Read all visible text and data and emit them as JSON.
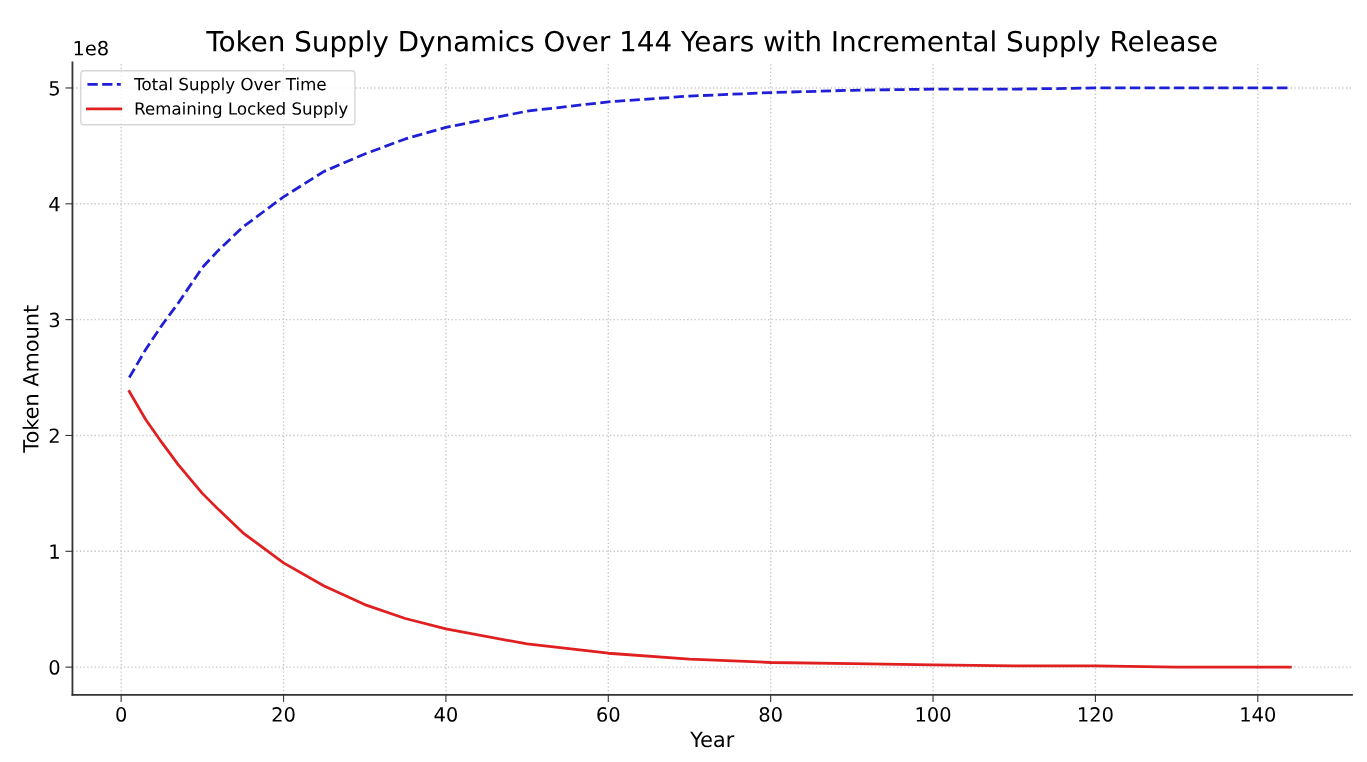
{
  "chart_data": {
    "type": "line",
    "title": "Token Supply Dynamics Over 144 Years with Incremental Supply Release",
    "xlabel": "Year",
    "ylabel": "Token Amount",
    "annotations": [
      "1e8"
    ],
    "x": [
      1,
      3,
      5,
      7,
      10,
      12,
      15,
      20,
      25,
      30,
      35,
      40,
      50,
      60,
      70,
      80,
      90,
      100,
      110,
      120,
      130,
      144
    ],
    "series": [
      {
        "name": "Total Supply Over Time",
        "color": "#1f1fd6",
        "line_style": "dashed",
        "values": [
          2.5,
          2.74,
          2.95,
          3.14,
          3.45,
          3.6,
          3.8,
          4.06,
          4.28,
          4.43,
          4.56,
          4.66,
          4.8,
          4.88,
          4.93,
          4.96,
          4.98,
          4.99,
          4.99,
          5.0,
          5.0,
          5.0
        ]
      },
      {
        "name": "Remaining Locked Supply",
        "color": "#e02020",
        "line_style": "solid",
        "values": [
          2.38,
          2.14,
          1.94,
          1.75,
          1.5,
          1.36,
          1.16,
          0.9,
          0.7,
          0.54,
          0.42,
          0.33,
          0.2,
          0.12,
          0.07,
          0.04,
          0.03,
          0.02,
          0.01,
          0.01,
          0.0,
          0.0
        ]
      }
    ],
    "xlim": [
      -6,
      151.6
    ],
    "xticks": [
      0,
      20,
      40,
      60,
      80,
      100,
      120,
      140
    ],
    "ylim": [
      -0.24,
      5.22
    ],
    "yticks": [
      0,
      1,
      2,
      3,
      4,
      5
    ],
    "grid": true,
    "legend": "top left",
    "marker": "none"
  }
}
